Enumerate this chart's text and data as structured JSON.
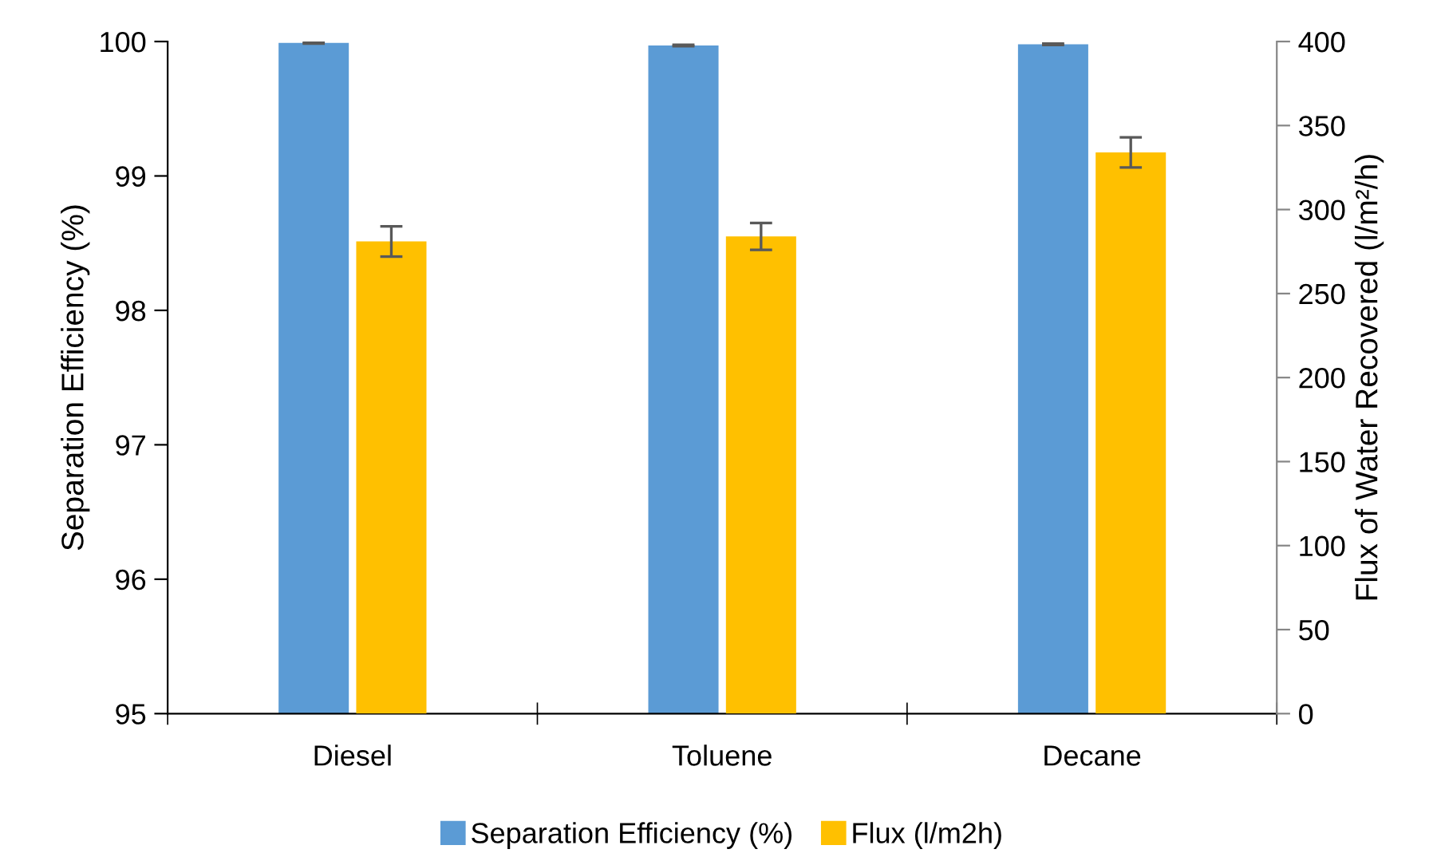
{
  "chart_data": {
    "type": "bar",
    "categories": [
      "Diesel",
      "Toluene",
      "Decane"
    ],
    "ylabel": "Separation Efficiency (%)",
    "y2label": "Flux of Water Recovered (l/m²/h)",
    "series": [
      {
        "name": "Separation Efficiency (%)",
        "color": "#5b9bd5",
        "values": [
          99.99,
          99.97,
          99.98
        ],
        "errors": [
          0.005,
          0.005,
          0.005
        ]
      },
      {
        "name": "Flux (l/m2h)",
        "color": "#ffc000",
        "axis": "y2",
        "values": [
          281,
          284,
          334
        ],
        "errors": [
          9,
          8,
          9
        ]
      }
    ],
    "ylim": [
      95,
      100
    ],
    "yticks": [
      95,
      96,
      97,
      98,
      99,
      100
    ],
    "y2lim": [
      0,
      400
    ],
    "y2ticks": [
      0,
      50,
      100,
      150,
      200,
      250,
      300,
      350,
      400
    ],
    "grid": false,
    "legend": "bottom"
  }
}
